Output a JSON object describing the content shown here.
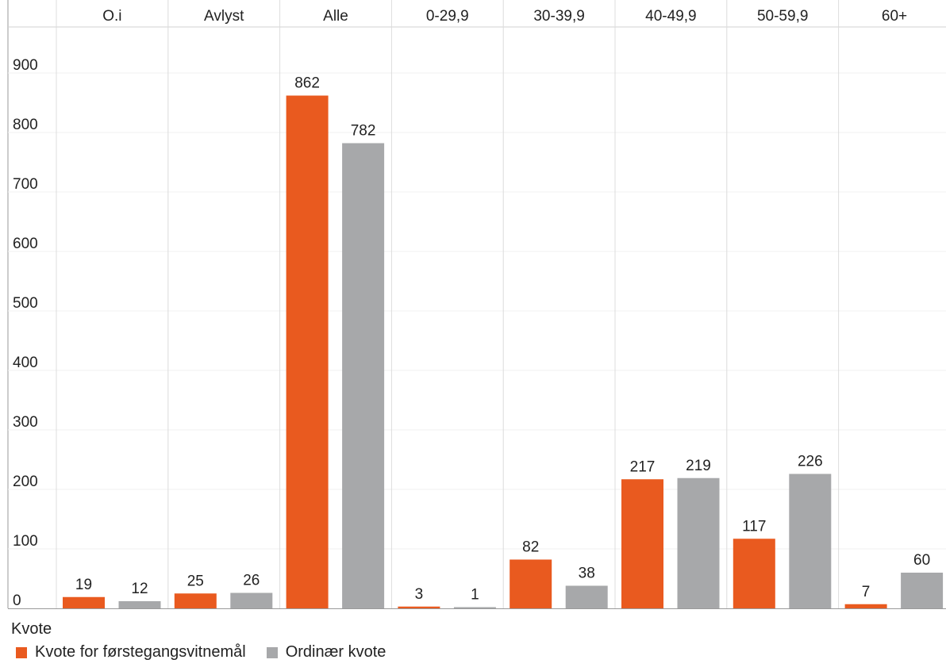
{
  "chart_data": {
    "type": "bar",
    "categories": [
      "O.i",
      "Avlyst",
      "Alle",
      "0-29,9",
      "30-39,9",
      "40-49,9",
      "50-59,9",
      "60+"
    ],
    "series": [
      {
        "name": "Kvote for førstegangsvitnemål",
        "color": "#e95a1f",
        "values": [
          19,
          25,
          862,
          3,
          82,
          217,
          117,
          7
        ]
      },
      {
        "name": "Ordinær kvote",
        "color": "#a7a8aa",
        "values": [
          12,
          26,
          782,
          1,
          38,
          219,
          226,
          60
        ]
      }
    ],
    "yticks": [
      0,
      100,
      200,
      300,
      400,
      500,
      600,
      700,
      800,
      900
    ],
    "ylim": [
      0,
      950
    ],
    "legend_title": "Kvote",
    "legend_position": "bottom-left",
    "grid": true
  }
}
